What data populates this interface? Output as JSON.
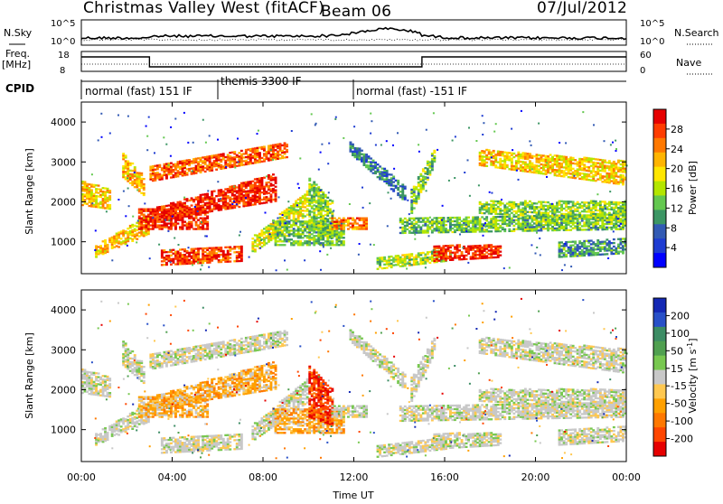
{
  "header": {
    "title": "Christmas Valley West (fitACF)",
    "beam": "Beam 06",
    "date": "07/Jul/2012"
  },
  "nsky_panel": {
    "left_label": "N.Sky",
    "right_label": "N.Search",
    "ticks_left": [
      "10^5",
      "10^0"
    ],
    "ticks_right": [
      "10^5",
      "10^0"
    ]
  },
  "freq_panel": {
    "left_label_1": "Freq.",
    "left_label_2": "[MHz]",
    "right_label": "Nave",
    "ticks_left": [
      "18",
      "8"
    ],
    "ticks_right": [
      "60",
      "0"
    ]
  },
  "cpid": {
    "label": "CPID",
    "segments": [
      {
        "text": "normal (fast) 151 IF",
        "start_h": 0,
        "end_h": 6
      },
      {
        "text": "themis 3300 IF",
        "start_h": 6,
        "end_h": 12
      },
      {
        "text": "normal (fast) -151 IF",
        "start_h": 12,
        "end_h": 24
      }
    ]
  },
  "chart_data": [
    {
      "type": "heatmap",
      "name": "Power",
      "ylabel": "Slant Range [km]",
      "yticks": [
        1000,
        2000,
        3000,
        4000
      ],
      "ylim": [
        200,
        4500
      ],
      "xlim": [
        0,
        24
      ],
      "colorbar_label": "Power [dB]",
      "colorbar_ticks": [
        "28",
        "24",
        "20",
        "16",
        "12",
        "8",
        "4"
      ],
      "colorbar_colors": [
        "#e60000",
        "#ff3c00",
        "#ff7800",
        "#ffb400",
        "#ffe600",
        "#b4e600",
        "#64c850",
        "#3c9664",
        "#325ab4",
        "#1e3cd2",
        "#0000ff"
      ]
    },
    {
      "type": "heatmap",
      "name": "Velocity",
      "ylabel": "Slant Range [km]",
      "yticks": [
        1000,
        2000,
        3000,
        4000
      ],
      "ylim": [
        200,
        4500
      ],
      "xlim": [
        0,
        24
      ],
      "xlabel": "Time UT",
      "xticks": [
        "00:00",
        "04:00",
        "08:00",
        "12:00",
        "16:00",
        "20:00",
        "00:00"
      ],
      "colorbar_label": "Velocity [m s^-1]",
      "colorbar_ticks": [
        "200",
        "100",
        "50",
        "15",
        "-15",
        "-50",
        "-100",
        "-200"
      ],
      "colorbar_colors": [
        "#1428b4",
        "#2850c8",
        "#3c8c64",
        "#50a050",
        "#78c850",
        "#c8c8c8",
        "#ffc850",
        "#ffa000",
        "#ff7800",
        "#ff4600",
        "#e60000"
      ]
    }
  ]
}
